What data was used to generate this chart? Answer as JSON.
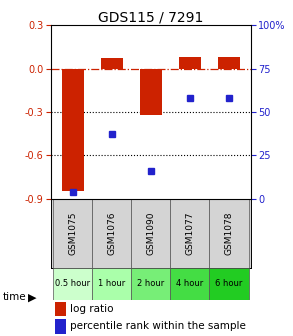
{
  "title": "GDS115 / 7291",
  "samples": [
    "GSM1075",
    "GSM1076",
    "GSM1090",
    "GSM1077",
    "GSM1078"
  ],
  "time_labels": [
    "0.5 hour",
    "1 hour",
    "2 hour",
    "4 hour",
    "6 hour"
  ],
  "time_colors": [
    "#ccffcc",
    "#aaffaa",
    "#77ee77",
    "#44dd44",
    "#22cc22"
  ],
  "log_ratio": [
    -0.85,
    0.07,
    -0.32,
    0.08,
    0.08
  ],
  "percentile": [
    4,
    37,
    16,
    58,
    58
  ],
  "bar_color": "#cc2200",
  "dot_color": "#2222cc",
  "ylim_left": [
    -0.9,
    0.3
  ],
  "ylim_right": [
    0,
    100
  ],
  "yticks_left": [
    0.3,
    0.0,
    -0.3,
    -0.6,
    -0.9
  ],
  "yticks_right": [
    100,
    75,
    50,
    25,
    0
  ],
  "dotted_lines": [
    -0.3,
    -0.6
  ],
  "sample_bg": "#d4d4d4",
  "plot_bg": "#ffffff",
  "title_fontsize": 10,
  "tick_fontsize": 7,
  "legend_fontsize": 7.5,
  "bar_width": 0.55
}
